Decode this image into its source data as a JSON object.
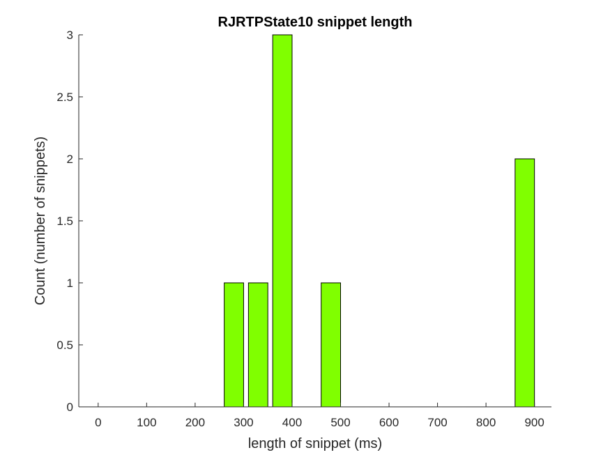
{
  "chart_data": {
    "type": "bar",
    "title": "RJRTPState10 snippet length",
    "xlabel": "length of snippet (ms)",
    "ylabel": "Count (number of snippets)",
    "xlim": [
      -40,
      935
    ],
    "ylim": [
      0,
      3
    ],
    "x_ticks": [
      0,
      100,
      200,
      300,
      400,
      500,
      600,
      700,
      800,
      900
    ],
    "x_tick_labels": [
      "0",
      "100",
      "200",
      "300",
      "400",
      "500",
      "600",
      "700",
      "800",
      "900"
    ],
    "y_ticks": [
      0,
      0.5,
      1,
      1.5,
      2,
      2.5,
      3
    ],
    "y_tick_labels": [
      "0",
      "0.5",
      "1",
      "1.5",
      "2",
      "2.5",
      "3"
    ],
    "bar_width": 40,
    "x": [
      0,
      50,
      100,
      150,
      200,
      250,
      280,
      330,
      380,
      430,
      480,
      530,
      580,
      630,
      680,
      730,
      780,
      830,
      880
    ],
    "values": [
      0,
      0,
      0,
      0,
      0,
      0,
      1,
      1,
      3,
      0,
      1,
      0,
      0,
      0,
      0,
      0,
      0,
      0,
      2
    ],
    "bar_color": "#80ff00",
    "edge_color": "#000000",
    "grid": false,
    "box": false
  }
}
